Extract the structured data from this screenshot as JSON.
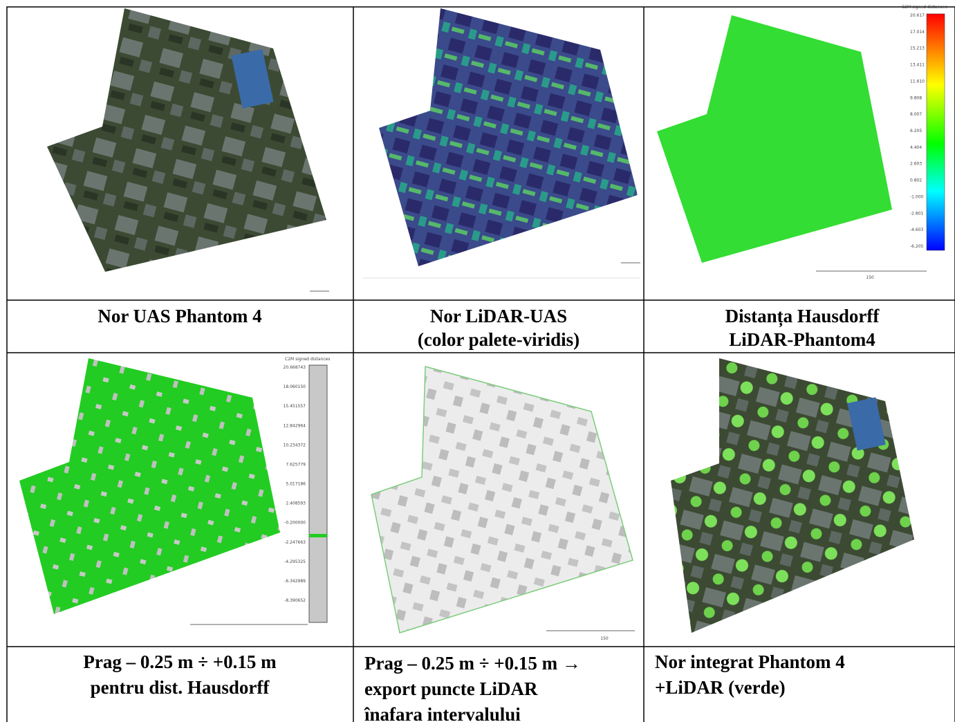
{
  "panels": [
    {
      "caption": [
        "Nor UAS Phantom 4"
      ]
    },
    {
      "caption": [
        "Nor LiDAR-UAS",
        "(color palete-viridis)"
      ]
    },
    {
      "caption": [
        "Distanța Hausdorff",
        "LiDAR-Phantom4"
      ],
      "colorbar": {
        "title": "C2M signed distances",
        "labels": [
          "20.617",
          "17.014",
          "15.213",
          "13.411",
          "11.610",
          "9.808",
          "8.007",
          "6.205",
          "4.404",
          "2.603",
          "0.802",
          "-1.000",
          "-2.801",
          "-4.603",
          "-6.205"
        ]
      },
      "scale_label": "150"
    },
    {
      "caption": [
        "Prag – 0.25 m ÷ +0.15 m",
        "pentru dist. Hausdorff"
      ],
      "colorbar": {
        "title": "C2M signed distances",
        "labels": [
          "20.668743",
          "18.060150",
          "15.451557",
          "12.842964",
          "10.234372",
          "7.625779",
          "5.017186",
          "2.408593",
          "-0.200000",
          "-2.247663",
          "-4.295325",
          "-6.342989",
          "-8.390652"
        ]
      }
    },
    {
      "caption": [
        "Prag – 0.25 m ÷ +0.15 m →",
        "export puncte LiDAR",
        "înafara intervalului"
      ],
      "scale_label": "150"
    },
    {
      "caption": [
        "Nor integrat Phantom 4",
        "+LiDAR (verde)"
      ]
    }
  ]
}
